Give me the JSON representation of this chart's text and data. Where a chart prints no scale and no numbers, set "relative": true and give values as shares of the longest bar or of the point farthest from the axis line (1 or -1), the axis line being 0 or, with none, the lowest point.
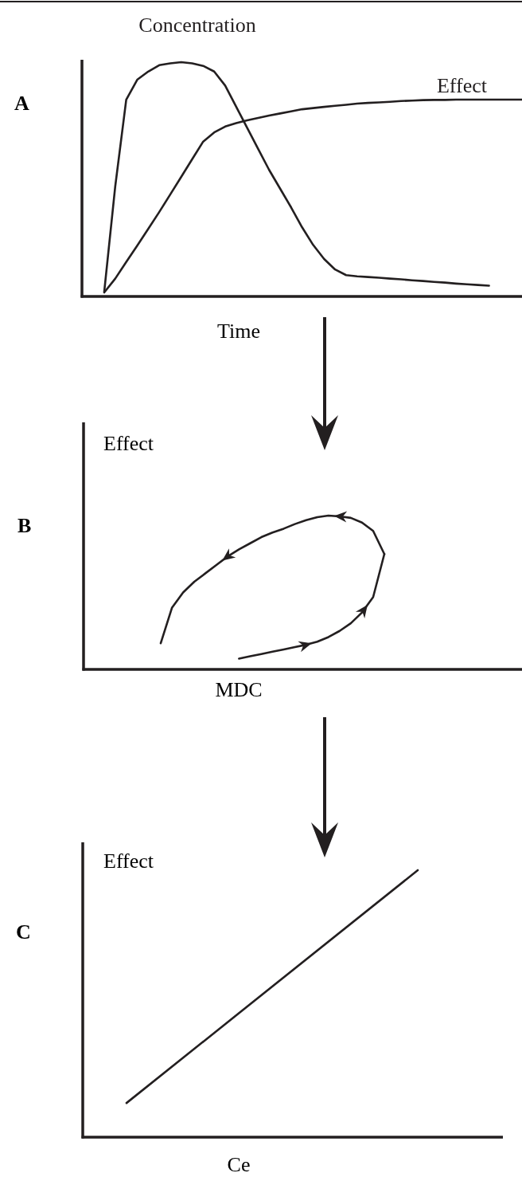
{
  "chart_data": [
    {
      "type": "line",
      "title": "A",
      "xlabel": "Time",
      "relative": true,
      "categories": [
        null,
        null,
        null,
        null,
        null,
        null,
        null,
        null,
        null,
        null,
        null,
        null,
        null,
        null,
        null,
        null,
        null,
        null,
        null,
        null,
        null,
        null,
        null,
        null,
        null,
        null,
        null,
        null,
        null,
        null,
        null,
        null,
        null,
        null,
        null,
        null,
        null,
        null,
        null
      ],
      "series": [
        {
          "name": "Concentration",
          "color": "#231f20",
          "values": [
            0.02,
            0.47,
            0.84,
            0.925,
            0.96,
            0.987,
            0.995,
            1,
            0.995,
            0.984,
            0.96,
            0.9,
            0.81,
            0.72,
            0.63,
            0.54,
            0.46,
            0.38,
            0.295,
            0.22,
            0.16,
            0.115,
            0.091,
            0.086,
            0.083,
            0.08,
            0.076,
            0.073,
            0.069,
            0.066,
            0.062,
            0.059,
            0.055,
            0.052,
            0.049,
            0.046,
            null,
            null,
            null
          ]
        },
        {
          "name": "Effect",
          "color": "#231f20",
          "values": [
            0.017,
            0.076,
            0.147,
            0.217,
            0.288,
            0.36,
            0.435,
            0.51,
            0.586,
            0.661,
            0.7,
            0.725,
            0.74,
            0.752,
            0.762,
            0.772,
            0.781,
            0.79,
            0.799,
            0.804,
            0.809,
            0.814,
            0.818,
            0.823,
            0.826,
            0.828,
            0.831,
            0.834,
            0.836,
            0.838,
            0.839,
            0.839,
            0.84,
            0.84,
            0.84,
            0.84,
            0.84,
            0.84,
            0.84
          ]
        }
      ]
    },
    {
      "type": "line",
      "title": "B",
      "xlabel": "MDC",
      "ylabel": "Effect",
      "relative": true,
      "categories": [
        null,
        null,
        null,
        null,
        null,
        null,
        null,
        null,
        null,
        null,
        null,
        null,
        null,
        null,
        null,
        null,
        null,
        null,
        null,
        null,
        null
      ],
      "series": [
        {
          "color": "#231f20",
          "values": [
            0.17,
            0.4,
            0.5,
            0.57,
            0.625,
            0.68,
            0.735,
            0.78,
            0.82,
            0.86,
            0.89,
            0.915,
            0.945,
            0.97,
            0.99,
            1,
            0.995,
            0.985,
            0.955,
            0.9,
            0.75
          ]
        },
        {
          "color": "#231f20",
          "values": [
            null,
            null,
            null,
            null,
            null,
            null,
            null,
            0.07,
            0.085,
            0.1,
            0.115,
            0.13,
            0.145,
            0.16,
            0.18,
            0.21,
            0.25,
            0.3,
            0.37,
            0.47,
            0.75
          ]
        }
      ]
    },
    {
      "type": "line",
      "title": "C",
      "xlabel": "Ce",
      "ylabel": "Effect",
      "relative": true,
      "categories": [
        null,
        null
      ],
      "series": [
        {
          "color": "#231f20",
          "values": [
            0.128,
            1
          ]
        }
      ]
    }
  ]
}
